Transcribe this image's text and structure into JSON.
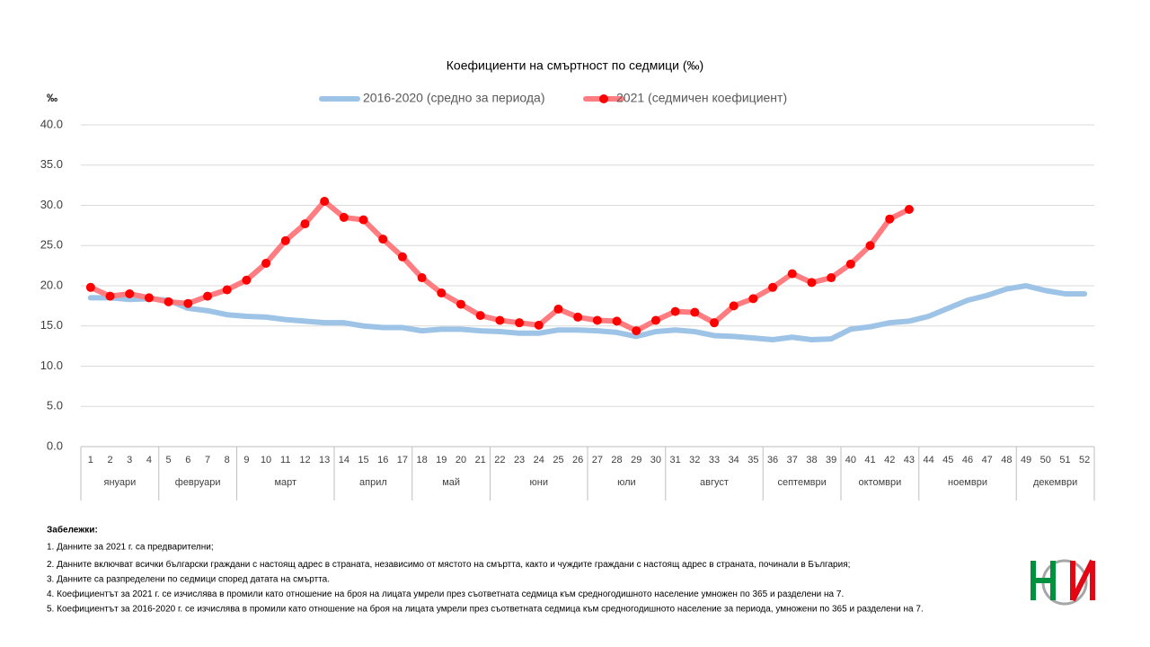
{
  "chart_data": {
    "type": "line",
    "title": "Коефициенти на смъртност по седмици (‰)",
    "y_unit": "‰",
    "categories": [
      "1",
      "2",
      "3",
      "4",
      "5",
      "6",
      "7",
      "8",
      "9",
      "10",
      "11",
      "12",
      "13",
      "14",
      "15",
      "16",
      "17",
      "18",
      "19",
      "20",
      "21",
      "22",
      "23",
      "24",
      "25",
      "26",
      "27",
      "28",
      "29",
      "30",
      "31",
      "32",
      "33",
      "34",
      "35",
      "36",
      "37",
      "38",
      "39",
      "40",
      "41",
      "42",
      "43",
      "44",
      "45",
      "46",
      "47",
      "48",
      "49",
      "50",
      "51",
      "52"
    ],
    "months": [
      {
        "label": "януари",
        "weeks": [
          1,
          4
        ]
      },
      {
        "label": "февруари",
        "weeks": [
          5,
          8
        ]
      },
      {
        "label": "март",
        "weeks": [
          9,
          13
        ]
      },
      {
        "label": "април",
        "weeks": [
          14,
          17
        ]
      },
      {
        "label": "май",
        "weeks": [
          18,
          21
        ]
      },
      {
        "label": "юни",
        "weeks": [
          22,
          26
        ]
      },
      {
        "label": "юли",
        "weeks": [
          27,
          30
        ]
      },
      {
        "label": "август",
        "weeks": [
          31,
          35
        ]
      },
      {
        "label": "септември",
        "weeks": [
          36,
          39
        ]
      },
      {
        "label": "октомври",
        "weeks": [
          40,
          43
        ]
      },
      {
        "label": "ноември",
        "weeks": [
          44,
          48
        ]
      },
      {
        "label": "декември",
        "weeks": [
          49,
          52
        ]
      }
    ],
    "series": [
      {
        "name": "2016-2020 (средно за периода)",
        "color": "#9dc3e6",
        "markers": false,
        "values": [
          18.5,
          18.5,
          18.3,
          18.4,
          18.2,
          17.2,
          16.9,
          16.4,
          16.2,
          16.1,
          15.8,
          15.6,
          15.4,
          15.4,
          15.0,
          14.8,
          14.8,
          14.4,
          14.6,
          14.6,
          14.4,
          14.3,
          14.1,
          14.1,
          14.5,
          14.5,
          14.4,
          14.2,
          13.7,
          14.3,
          14.5,
          14.3,
          13.8,
          13.7,
          13.5,
          13.3,
          13.6,
          13.3,
          13.4,
          14.6,
          14.9,
          15.4,
          15.6,
          16.2,
          17.2,
          18.2,
          18.8,
          19.6,
          20.0,
          19.4,
          19.0,
          19.0
        ]
      },
      {
        "name": "2021 (седмичен коефициент)",
        "color": "#ff7c80",
        "marker_color": "#ff0000",
        "markers": true,
        "values": [
          19.8,
          18.7,
          19.0,
          18.5,
          18.0,
          17.8,
          18.7,
          19.5,
          20.7,
          22.8,
          25.6,
          27.7,
          30.5,
          28.5,
          28.2,
          25.8,
          23.6,
          21.0,
          19.1,
          17.7,
          16.3,
          15.7,
          15.4,
          15.1,
          17.1,
          16.1,
          15.7,
          15.6,
          14.4,
          15.7,
          16.8,
          16.7,
          15.4,
          17.5,
          18.4,
          19.8,
          21.5,
          20.4,
          21.0,
          22.7,
          25.0,
          28.3,
          29.5,
          null,
          null,
          null,
          null,
          null,
          null,
          null,
          null,
          null
        ]
      }
    ],
    "ylim": [
      0,
      40
    ],
    "yticks": [
      {
        "value": 0,
        "label": "0.0"
      },
      {
        "value": 5,
        "label": "5.0"
      },
      {
        "value": 10,
        "label": "10.0"
      },
      {
        "value": 15,
        "label": "15.0"
      },
      {
        "value": 20,
        "label": "20.0"
      },
      {
        "value": 25,
        "label": "25.0"
      },
      {
        "value": 30,
        "label": "30.0"
      },
      {
        "value": 35,
        "label": "35.0"
      },
      {
        "value": 40,
        "label": "40.0"
      }
    ],
    "grid": true,
    "legend": "top"
  },
  "notes": {
    "heading": "Забележки:",
    "items": [
      "1. Данните за 2021 г. са предварителни;",
      "2. Данните включват всички български граждани с настоящ адрес в страната, независимо от мястото на смъртта, както и чуждите граждани с настоящ адрес в страната, починали в България;",
      "3. Данните са разпределени по седмици според  датата на смъртта.",
      "4. Коефициентът за 2021 г. се изчислява в промили като отношение на броя на лицата умрели през съответната седмица към средногодишното население умножен по 365 и разделени на 7.",
      "5. Коефициентът за 2016-2020 г. се изчислява в промили като отношение на броя на лицата умрели през съответната седмица към средногодишното население за периода, умножени по 365 и разделени на 7."
    ]
  }
}
